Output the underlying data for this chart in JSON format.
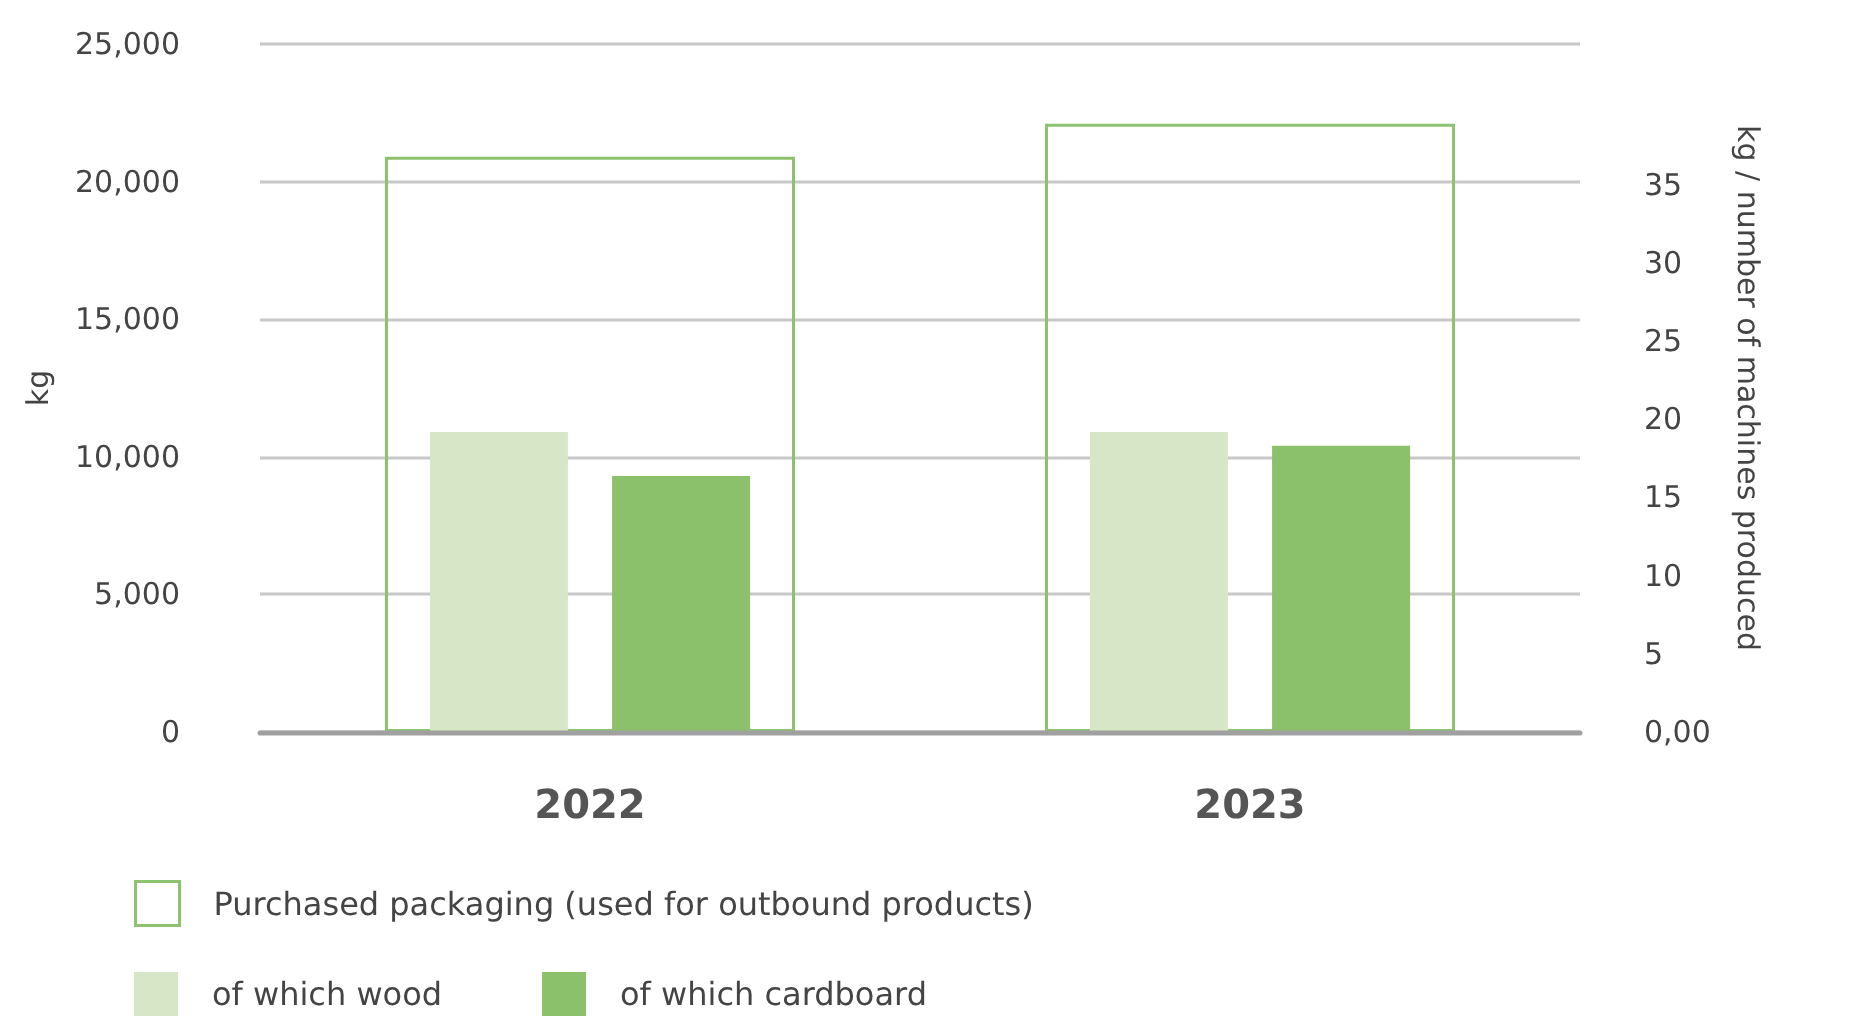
{
  "chart_data": {
    "type": "bar",
    "categories": [
      "2022",
      "2023"
    ],
    "ylabel": "kg",
    "y2label": "kg / number of machines produced",
    "series": [
      {
        "name": "Purchased packaging (used for outbound products)",
        "color": "#8dc26f",
        "values": [
          20900,
          22100
        ]
      },
      {
        "name": "of which wood",
        "color": "#d6e6c6",
        "values": [
          10900,
          10900
        ]
      },
      {
        "name": "of which cardboard",
        "color": "#8bc16b",
        "values": [
          9300,
          10400
        ]
      }
    ],
    "ylim": [
      0,
      25000
    ],
    "yticks": [
      {
        "value": 0,
        "label": "0"
      },
      {
        "value": 5000,
        "label": "5,000"
      },
      {
        "value": 10000,
        "label": "10,000"
      },
      {
        "value": 15000,
        "label": "15,000"
      },
      {
        "value": 20000,
        "label": "20,000"
      },
      {
        "value": 25000,
        "label": "25,000"
      }
    ],
    "y2lim": [
      0,
      44
    ],
    "y2ticks": [
      {
        "value": 0,
        "label": "0,00"
      },
      5,
      10,
      15,
      20,
      25,
      30,
      35
    ],
    "grid": "y",
    "legend": "bottom"
  }
}
